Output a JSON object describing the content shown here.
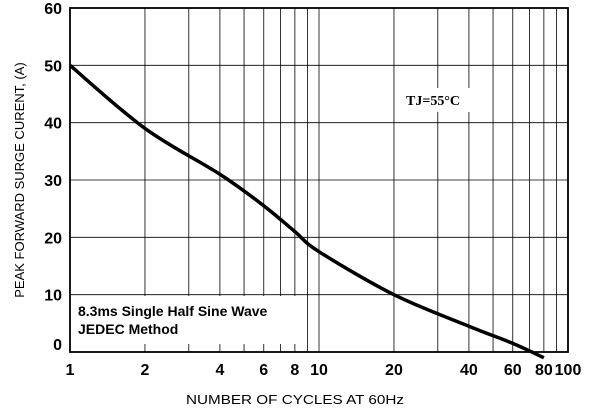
{
  "chart_data": {
    "type": "line",
    "x_scale": "log",
    "xlabel": "NUMBER OF CYCLES AT 60Hz",
    "ylabel": "PEAK FORWARD SURGE CURENT, (A)",
    "xlim": [
      1,
      100
    ],
    "ylim": [
      0,
      60
    ],
    "x_ticks": [
      1,
      2,
      4,
      6,
      8,
      10,
      20,
      40,
      60,
      80,
      100
    ],
    "x_tick_labels": [
      "1",
      "2",
      "4",
      "6",
      "8",
      "10",
      "20",
      "40",
      "60",
      "80",
      "100"
    ],
    "y_ticks": [
      0,
      10,
      20,
      30,
      40,
      50,
      60
    ],
    "y_tick_labels": [
      "0",
      "10",
      "20",
      "30",
      "40",
      "50",
      "60"
    ],
    "grid": true,
    "series": [
      {
        "x": [
          1,
          2,
          4,
          6,
          8,
          10,
          20,
          40,
          60,
          80
        ],
        "y": [
          50,
          39,
          31,
          25.5,
          21,
          17.5,
          10,
          4.5,
          1.5,
          -1
        ]
      }
    ],
    "annotations": {
      "condition": "TJ=55°C",
      "note_line1": "8.3ms Single Half Sine Wave",
      "note_line2": "JEDEC Method"
    }
  }
}
